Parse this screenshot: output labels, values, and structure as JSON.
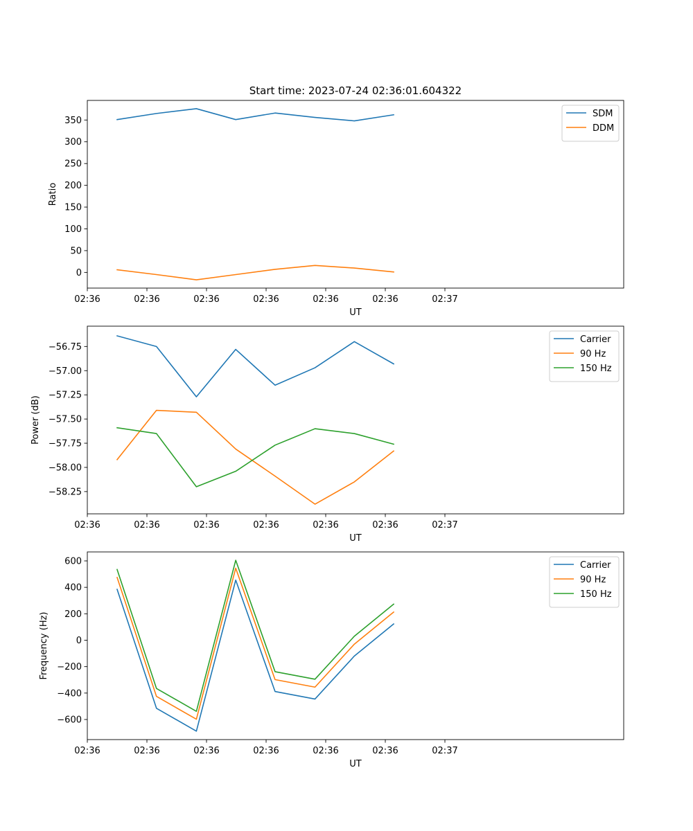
{
  "figure": {
    "title": "Start time: 2023-07-24 02:36:01.604322"
  },
  "chart_data": [
    {
      "type": "line",
      "xlabel": "UT",
      "ylabel": "Ratio",
      "xlim": [
        0,
        9
      ],
      "ylim": [
        -36,
        395
      ],
      "x": [
        0.5,
        1.16,
        1.83,
        2.49,
        3.15,
        3.82,
        4.48,
        5.14
      ],
      "x_ticks": [
        0.0,
        1.0,
        2.0,
        3.0,
        4.0,
        5.0,
        6.0
      ],
      "x_tick_labels": [
        "02:36",
        "02:36",
        "02:36",
        "02:36",
        "02:36",
        "02:36",
        "02:37"
      ],
      "y_ticks": [
        0,
        50,
        100,
        150,
        200,
        250,
        300,
        350
      ],
      "y_tick_labels": [
        "0",
        "50",
        "100",
        "150",
        "200",
        "250",
        "300",
        "350"
      ],
      "legend_position": "top-right",
      "series": [
        {
          "name": "SDM",
          "color": "#1f77b4",
          "values": [
            351,
            365,
            376,
            351,
            366,
            356,
            348,
            362
          ]
        },
        {
          "name": "DDM",
          "color": "#ff7f0e",
          "values": [
            6,
            -5,
            -17,
            -5,
            7,
            16,
            10,
            1
          ]
        }
      ]
    },
    {
      "type": "line",
      "xlabel": "UT",
      "ylabel": "Power (dB)",
      "xlim": [
        0,
        9
      ],
      "ylim": [
        -58.48,
        -56.54
      ],
      "x": [
        0.5,
        1.16,
        1.83,
        2.49,
        3.15,
        3.82,
        4.48,
        5.14
      ],
      "x_ticks": [
        0.0,
        1.0,
        2.0,
        3.0,
        4.0,
        5.0,
        6.0
      ],
      "x_tick_labels": [
        "02:36",
        "02:36",
        "02:36",
        "02:36",
        "02:36",
        "02:36",
        "02:37"
      ],
      "y_ticks": [
        -58.25,
        -58.0,
        -57.75,
        -57.5,
        -57.25,
        -57.0,
        -56.75
      ],
      "y_tick_labels": [
        "−58.25",
        "−58.00",
        "−57.75",
        "−57.50",
        "−57.25",
        "−57.00",
        "−56.75"
      ],
      "legend_position": "top-right",
      "series": [
        {
          "name": "Carrier",
          "color": "#1f77b4",
          "values": [
            -56.64,
            -56.75,
            -57.27,
            -56.78,
            -57.15,
            -56.97,
            -56.7,
            -56.93
          ]
        },
        {
          "name": "90 Hz",
          "color": "#ff7f0e",
          "values": [
            -57.92,
            -57.41,
            -57.43,
            -57.81,
            -58.09,
            -58.38,
            -58.15,
            -57.83
          ]
        },
        {
          "name": "150 Hz",
          "color": "#2ca02c",
          "values": [
            -57.59,
            -57.65,
            -58.2,
            -58.04,
            -57.77,
            -57.6,
            -57.65,
            -57.76
          ]
        }
      ]
    },
    {
      "type": "line",
      "xlabel": "UT",
      "ylabel": "Frequency (Hz)",
      "xlim": [
        0,
        9
      ],
      "ylim": [
        -752,
        668
      ],
      "x": [
        0.5,
        1.16,
        1.83,
        2.49,
        3.15,
        3.82,
        4.48,
        5.14
      ],
      "x_ticks": [
        0.0,
        1.0,
        2.0,
        3.0,
        4.0,
        5.0,
        6.0
      ],
      "x_tick_labels": [
        "02:36",
        "02:36",
        "02:36",
        "02:36",
        "02:36",
        "02:36",
        "02:37"
      ],
      "y_ticks": [
        -600,
        -400,
        -200,
        0,
        200,
        400,
        600
      ],
      "y_tick_labels": [
        "−600",
        "−400",
        "−200",
        "0",
        "200",
        "400",
        "600"
      ],
      "legend_position": "top-right",
      "series": [
        {
          "name": "Carrier",
          "color": "#1f77b4",
          "values": [
            385,
            -515,
            -688,
            455,
            -388,
            -445,
            -120,
            123
          ]
        },
        {
          "name": "90 Hz",
          "color": "#ff7f0e",
          "values": [
            475,
            -425,
            -598,
            545,
            -298,
            -355,
            -30,
            213
          ]
        },
        {
          "name": "150 Hz",
          "color": "#2ca02c",
          "values": [
            535,
            -365,
            -538,
            605,
            -238,
            -295,
            30,
            273
          ]
        }
      ]
    }
  ]
}
